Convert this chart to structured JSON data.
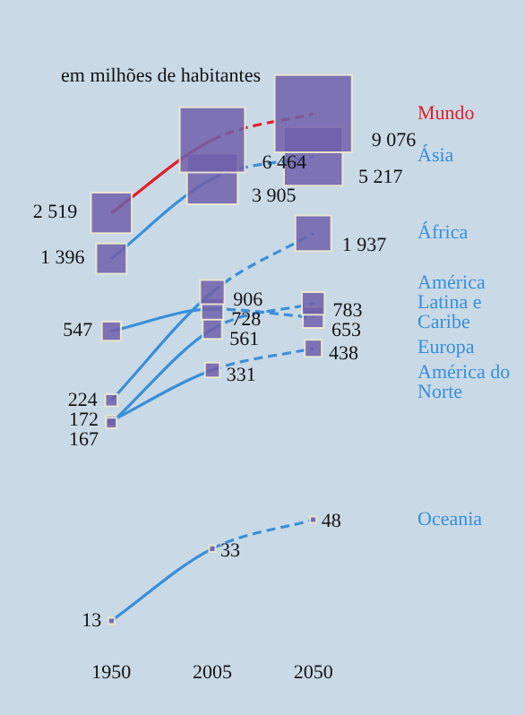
{
  "chart_data": {
    "type": "line",
    "title": "em milhões de habitantes",
    "categories": [
      "1950",
      "2005",
      "2050"
    ],
    "log": "y",
    "tick_labels": "x",
    "marker": "square",
    "legend": false,
    "series": [
      {
        "name": "África",
        "color": "#3a8fd8",
        "values": [
          224,
          906,
          1937
        ],
        "value_labels": [
          "224",
          "906",
          "1 937"
        ]
      },
      {
        "name": "América Latina e Caribe",
        "color": "#3a8fd8",
        "values": [
          167,
          561,
          783
        ],
        "value_labels": [
          "167",
          "561",
          "783"
        ]
      },
      {
        "name": "Oceania",
        "color": "#3a8fd8",
        "values": [
          13,
          33,
          48
        ],
        "value_labels": [
          "13",
          "33",
          "48"
        ]
      },
      {
        "name": "Mundo",
        "color": "#e0202a",
        "values": [
          2519,
          6464,
          9076
        ],
        "value_labels": [
          "2 519",
          "6 464",
          "9 076"
        ]
      },
      {
        "name": "Ásia",
        "color": "#3a8fd8",
        "values": [
          1396,
          3905,
          5217
        ],
        "value_labels": [
          "1 396",
          "3 905",
          "5 217"
        ]
      },
      {
        "name": "América do Norte",
        "color": "#3a8fd8",
        "values": [
          172,
          331,
          438
        ],
        "value_labels": [
          "172",
          "331",
          "438"
        ]
      },
      {
        "name": "Europa",
        "color": "#3a8fd8",
        "values": [
          547,
          728,
          653
        ],
        "value_labels": [
          "547",
          "728",
          "653"
        ]
      }
    ]
  }
}
